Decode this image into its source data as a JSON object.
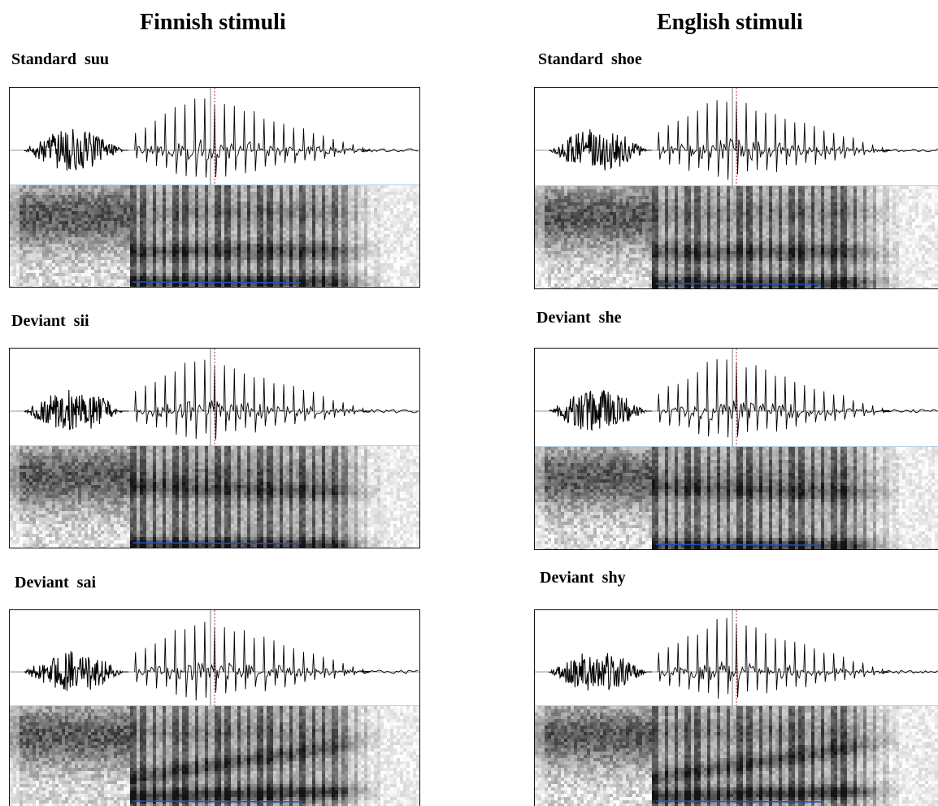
{
  "columns": [
    {
      "title": "Finnish stimuli",
      "stimuli": [
        {
          "label": "Standard  suu",
          "vowel": "u"
        },
        {
          "label": "Deviant  sii",
          "vowel": "i"
        },
        {
          "label": "Deviant  sai",
          "vowel": "ai"
        }
      ]
    },
    {
      "title": "English stimuli",
      "stimuli": [
        {
          "label": "Standard  shoe",
          "vowel": "u"
        },
        {
          "label": "Deviant  she",
          "vowel": "i"
        },
        {
          "label": "Deviant  shy",
          "vowel": "ai"
        }
      ]
    }
  ],
  "colors": {
    "waveform": "#000000",
    "divider": "#8fb7d6",
    "marker": "#b03030",
    "pitch_track": "#2050c0"
  }
}
